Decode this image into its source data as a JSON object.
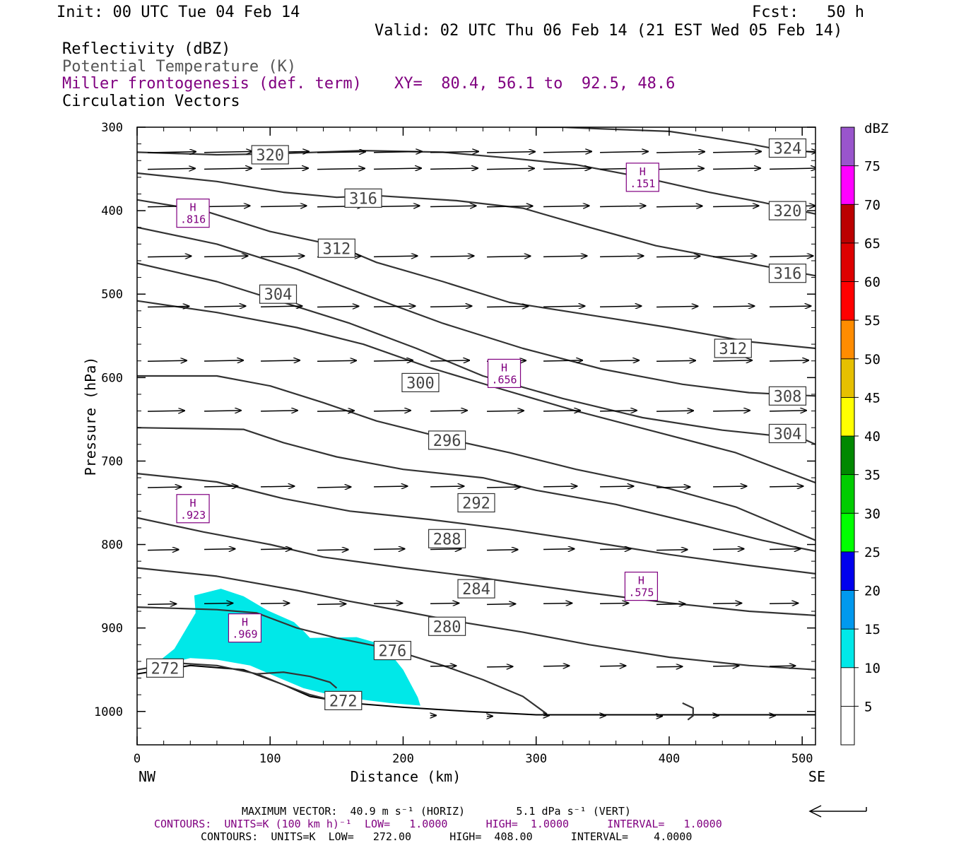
{
  "header": {
    "init": "Init: 00 UTC Tue 04 Feb 14",
    "fcst": "Fcst:   50 h",
    "valid": "Valid: 02 UTC Thu 06 Feb 14 (21 EST Wed 05 Feb 14)",
    "fields": [
      {
        "text": "Reflectivity (dBZ)",
        "color": "#000000"
      },
      {
        "text": "Potential Temperature (K)",
        "color": "#555555"
      },
      {
        "text": "Miller frontogenesis (def. term)",
        "color": "#800080"
      },
      {
        "text": "Circulation Vectors",
        "color": "#000000"
      }
    ],
    "xy": "XY=  80.4, 56.1 to  92.5, 48.6"
  },
  "footer": {
    "max_vector": "MAXIMUM VECTOR:  40.9 m s⁻¹ (HORIZ)        5.1 dPa s⁻¹ (VERT)",
    "contours_purple": "CONTOURS:  UNITS=K (100 km h)⁻¹  LOW=   1.0000      HIGH=  1.0000      INTERVAL=   1.0000",
    "contours_black": "CONTOURS:  UNITS=K  LOW=   272.00      HIGH=  408.00      INTERVAL=    4.0000"
  },
  "chart_data": {
    "type": "cross-section",
    "xlabel": "Distance (km)",
    "ylabel": "Pressure (hPa)",
    "xlim": [
      0,
      510
    ],
    "ylim": [
      1040,
      300
    ],
    "x_ticks": [
      0,
      100,
      200,
      300,
      400,
      500
    ],
    "y_ticks": [
      300,
      400,
      500,
      600,
      700,
      800,
      900,
      1000
    ],
    "endpoints": {
      "left": "NW",
      "right": "SE"
    },
    "colorbar": {
      "title": "dBZ",
      "levels": [
        5,
        10,
        15,
        20,
        25,
        30,
        35,
        40,
        45,
        50,
        55,
        60,
        65,
        70,
        75
      ],
      "colors": [
        "#ffffff",
        "#00e8e8",
        "#0099ee",
        "#0000ee",
        "#00ff00",
        "#00cc00",
        "#008800",
        "#ffff00",
        "#e6c000",
        "#ff8c00",
        "#ff0000",
        "#dd0000",
        "#bb0000",
        "#ff00ff",
        "#9955cc"
      ]
    },
    "reflectivity_area": {
      "color": "#00e8e8",
      "points": [
        [
          10,
          948
        ],
        [
          28,
          925
        ],
        [
          44,
          882
        ],
        [
          43,
          861
        ],
        [
          63,
          853
        ],
        [
          80,
          862
        ],
        [
          98,
          879
        ],
        [
          118,
          893
        ],
        [
          126,
          905
        ],
        [
          130,
          912
        ],
        [
          165,
          911
        ],
        [
          185,
          920
        ],
        [
          200,
          950
        ],
        [
          211,
          983
        ],
        [
          213,
          993
        ],
        [
          190,
          990
        ],
        [
          150,
          982
        ],
        [
          125,
          972
        ],
        [
          110,
          962
        ],
        [
          85,
          945
        ],
        [
          60,
          938
        ],
        [
          40,
          936
        ],
        [
          10,
          948
        ]
      ]
    },
    "theta_contours": [
      {
        "label": "324",
        "points": [
          [
            300,
            300
          ],
          [
            320,
            300
          ],
          [
            350,
            302
          ],
          [
            400,
            305
          ],
          [
            430,
            312
          ],
          [
            460,
            320
          ],
          [
            480,
            326
          ],
          [
            510,
            330
          ]
        ]
      },
      {
        "label": "320",
        "points": [
          [
            0,
            330
          ],
          [
            60,
            333
          ],
          [
            100,
            332
          ],
          [
            170,
            328
          ],
          [
            230,
            330
          ],
          [
            280,
            337
          ],
          [
            330,
            345
          ],
          [
            380,
            360
          ],
          [
            430,
            378
          ],
          [
            470,
            390
          ],
          [
            510,
            404
          ]
        ]
      },
      {
        "label": "316",
        "points": [
          [
            0,
            355
          ],
          [
            60,
            365
          ],
          [
            110,
            378
          ],
          [
            150,
            384
          ],
          [
            180,
            382
          ],
          [
            240,
            388
          ],
          [
            290,
            397
          ],
          [
            340,
            420
          ],
          [
            390,
            442
          ],
          [
            450,
            460
          ],
          [
            510,
            478
          ]
        ]
      },
      {
        "label": "312",
        "points": [
          [
            0,
            387
          ],
          [
            50,
            400
          ],
          [
            100,
            425
          ],
          [
            150,
            442
          ],
          [
            180,
            462
          ],
          [
            230,
            485
          ],
          [
            280,
            510
          ],
          [
            340,
            525
          ],
          [
            400,
            540
          ],
          [
            460,
            557
          ],
          [
            510,
            565
          ]
        ]
      },
      {
        "label": "308",
        "points": [
          [
            0,
            420
          ],
          [
            60,
            440
          ],
          [
            120,
            470
          ],
          [
            170,
            500
          ],
          [
            230,
            535
          ],
          [
            290,
            565
          ],
          [
            350,
            590
          ],
          [
            410,
            608
          ],
          [
            460,
            618
          ],
          [
            510,
            622
          ]
        ]
      },
      {
        "label": "304",
        "points": [
          [
            0,
            463
          ],
          [
            60,
            485
          ],
          [
            100,
            505
          ],
          [
            160,
            535
          ],
          [
            210,
            565
          ],
          [
            260,
            598
          ],
          [
            320,
            625
          ],
          [
            380,
            648
          ],
          [
            440,
            663
          ],
          [
            500,
            673
          ],
          [
            510,
            680
          ]
        ]
      },
      {
        "label": "300",
        "points": [
          [
            0,
            508
          ],
          [
            60,
            522
          ],
          [
            120,
            540
          ],
          [
            170,
            560
          ],
          [
            220,
            588
          ],
          [
            270,
            612
          ],
          [
            330,
            640
          ],
          [
            390,
            665
          ],
          [
            450,
            690
          ],
          [
            510,
            726
          ]
        ]
      },
      {
        "label": "296",
        "points": [
          [
            0,
            598
          ],
          [
            60,
            598
          ],
          [
            100,
            610
          ],
          [
            140,
            630
          ],
          [
            180,
            652
          ],
          [
            240,
            676
          ],
          [
            280,
            690
          ],
          [
            330,
            710
          ],
          [
            400,
            733
          ],
          [
            450,
            755
          ],
          [
            510,
            795
          ]
        ]
      },
      {
        "label": "292",
        "points": [
          [
            0,
            660
          ],
          [
            80,
            662
          ],
          [
            110,
            678
          ],
          [
            150,
            695
          ],
          [
            200,
            710
          ],
          [
            260,
            720
          ],
          [
            300,
            735
          ],
          [
            360,
            752
          ],
          [
            420,
            775
          ],
          [
            470,
            795
          ],
          [
            510,
            808
          ]
        ]
      },
      {
        "label": "288",
        "points": [
          [
            0,
            715
          ],
          [
            60,
            725
          ],
          [
            110,
            745
          ],
          [
            160,
            760
          ],
          [
            220,
            770
          ],
          [
            280,
            782
          ],
          [
            330,
            794
          ],
          [
            400,
            812
          ],
          [
            460,
            825
          ],
          [
            510,
            835
          ]
        ]
      },
      {
        "label": "284",
        "points": [
          [
            0,
            768
          ],
          [
            50,
            785
          ],
          [
            100,
            800
          ],
          [
            140,
            815
          ],
          [
            200,
            828
          ],
          [
            250,
            838
          ],
          [
            290,
            847
          ],
          [
            340,
            858
          ],
          [
            400,
            870
          ],
          [
            460,
            880
          ],
          [
            510,
            885
          ]
        ]
      },
      {
        "label": "280",
        "points": [
          [
            0,
            828
          ],
          [
            60,
            838
          ],
          [
            120,
            855
          ],
          [
            160,
            868
          ],
          [
            200,
            880
          ],
          [
            240,
            892
          ],
          [
            290,
            905
          ],
          [
            340,
            920
          ],
          [
            400,
            935
          ],
          [
            460,
            945
          ],
          [
            510,
            950
          ]
        ]
      },
      {
        "label": "276",
        "points": [
          [
            0,
            875
          ],
          [
            60,
            878
          ],
          [
            90,
            882
          ],
          [
            120,
            900
          ],
          [
            150,
            912
          ],
          [
            190,
            925
          ],
          [
            230,
            945
          ],
          [
            260,
            962
          ],
          [
            290,
            982
          ],
          [
            308,
            1003
          ]
        ]
      },
      {
        "label": "272",
        "points": [
          [
            0,
            950
          ],
          [
            30,
            942
          ],
          [
            60,
            945
          ],
          [
            90,
            955
          ],
          [
            110,
            968
          ],
          [
            130,
            980
          ],
          [
            150,
            988
          ]
        ]
      },
      {
        "label": "",
        "points": [
          [
            90,
            955
          ],
          [
            110,
            953
          ],
          [
            130,
            958
          ],
          [
            145,
            965
          ],
          [
            150,
            972
          ]
        ]
      },
      {
        "label": "",
        "points": [
          [
            410,
            990
          ],
          [
            418,
            996
          ],
          [
            418,
            1005
          ],
          [
            414,
            1010
          ]
        ]
      }
    ],
    "terrain": {
      "points": [
        [
          0,
          955
        ],
        [
          40,
          945
        ],
        [
          80,
          950
        ],
        [
          110,
          968
        ],
        [
          130,
          982
        ],
        [
          160,
          990
        ],
        [
          200,
          995
        ],
        [
          250,
          1000
        ],
        [
          300,
          1004
        ],
        [
          510,
          1004
        ]
      ]
    },
    "frontogenesis_maxima": [
      {
        "label": "H",
        "value": ".816",
        "x": 42,
        "p": 403
      },
      {
        "label": "H",
        "value": ".151",
        "x": 380,
        "p": 360
      },
      {
        "label": "H",
        "value": ".656",
        "x": 276,
        "p": 595
      },
      {
        "label": "H",
        "value": ".923",
        "x": 42,
        "p": 757
      },
      {
        "label": "H",
        "value": ".575",
        "x": 379,
        "p": 850
      },
      {
        "label": "H",
        "value": ".969",
        "x": 81,
        "p": 900
      }
    ],
    "vector_legend": {
      "text": "MAXIMUM VECTOR",
      "horiz_ms": 40.9,
      "vert_dpas": 5.1
    }
  }
}
